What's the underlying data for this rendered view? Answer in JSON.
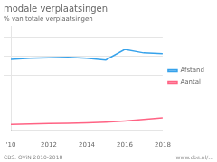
{
  "chart_data": {
    "type": "line",
    "title": "modale verplaatsingen",
    "subtitle": "% van totale verplaatsingen",
    "annotations": [
      "CBS: OViN 2010-2018",
      "www.cbs.nl/..."
    ],
    "x": [
      2010,
      2011,
      2012,
      2013,
      2014,
      2015,
      2016,
      2017,
      2018
    ],
    "series": [
      {
        "name": "Afstand",
        "values": [
          19.2,
          19.5,
          19.6,
          19.7,
          19.5,
          19.0,
          21.8,
          20.9,
          20.7
        ]
      },
      {
        "name": "Aantal",
        "values": [
          1.8,
          1.9,
          2.0,
          2.1,
          2.2,
          2.4,
          2.7,
          3.1,
          3.5
        ]
      }
    ],
    "xlim": [
      2010,
      2018
    ],
    "xticks": [
      {
        "value": 2010,
        "label": "'10"
      },
      2012,
      2014,
      2016,
      2018
    ],
    "ylim": [
      0,
      28
    ],
    "yticks": [
      5,
      10,
      15,
      20,
      25
    ],
    "grid": "y",
    "tick_labels": "x",
    "legend": "right"
  }
}
